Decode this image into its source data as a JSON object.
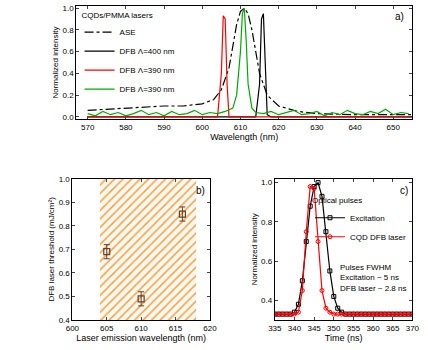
{
  "chart_data": [
    {
      "type": "line",
      "title": "a)",
      "legend_title": "CQDs/PMMA lasers",
      "x_label": "Wavelength (nm)",
      "y_label": "Normalized intensity",
      "xlim": [
        567,
        655
      ],
      "xticks": [
        570,
        580,
        590,
        600,
        610,
        620,
        630,
        640,
        650
      ],
      "ylim": [
        -0.02,
        1.02
      ],
      "yticks": [
        {
          "value": 0.0,
          "label": "0.0"
        },
        0.2,
        0.4,
        0.6,
        0.8,
        {
          "value": 1.0,
          "label": "1.0"
        }
      ],
      "legend": "top left",
      "series": [
        {
          "name": "ASE",
          "color": "#000000",
          "line_style": "dashdot",
          "x": [
            570,
            575,
            580,
            585,
            590,
            595,
            600,
            603,
            605,
            607,
            608,
            609,
            610,
            611,
            612,
            613,
            614,
            615,
            617,
            620,
            625,
            630,
            640,
            650,
            655
          ],
          "values": [
            0.06,
            0.07,
            0.08,
            0.09,
            0.1,
            0.1,
            0.12,
            0.16,
            0.25,
            0.45,
            0.65,
            0.85,
            0.97,
            1.0,
            0.95,
            0.8,
            0.6,
            0.4,
            0.2,
            0.1,
            0.05,
            0.03,
            0.02,
            0.02,
            0.02
          ]
        },
        {
          "name": "DFB Λ=400 nm",
          "color": "#000000",
          "line_style": "solid",
          "x": [
            570,
            614,
            615,
            615.5,
            616,
            616.5,
            617,
            618,
            655
          ],
          "values": [
            0,
            0,
            0.3,
            0.9,
            0.95,
            0.4,
            0.02,
            0,
            0
          ]
        },
        {
          "name": "DFB Λ=390 nm",
          "color": "#ff0000",
          "line_style": "solid",
          "x": [
            570,
            604,
            605,
            605.5,
            606,
            606.5,
            607,
            655
          ],
          "values": [
            0,
            0,
            0.4,
            0.93,
            0.9,
            0.3,
            0,
            0
          ]
        },
        {
          "name": "DFB Λ=390 nm",
          "color": "#00aa00",
          "line_style": "solid",
          "x": [
            570,
            572,
            574,
            576,
            578,
            580,
            582,
            584,
            586,
            588,
            590,
            592,
            594,
            596,
            598,
            600,
            602,
            604,
            606,
            608,
            609,
            610,
            610.5,
            611,
            611.5,
            612,
            613,
            614,
            616,
            618,
            620,
            622,
            624,
            626,
            628,
            630,
            632,
            634,
            636,
            638,
            640,
            642,
            644,
            646,
            648,
            650,
            652,
            654
          ],
          "values": [
            0.03,
            0.01,
            0.05,
            0.02,
            0.04,
            0.01,
            0.03,
            0.06,
            0.02,
            0.04,
            0.01,
            0.05,
            0.02,
            0.03,
            0.06,
            0.02,
            0.04,
            0.03,
            0.05,
            0.08,
            0.2,
            0.6,
            0.95,
            1.0,
            0.7,
            0.3,
            0.08,
            0.04,
            0.03,
            0.05,
            0.02,
            0.04,
            0.06,
            0.02,
            0.03,
            0.05,
            0.01,
            0.04,
            0.02,
            0.06,
            0.03,
            0.02,
            0.05,
            0.03,
            0.07,
            0.02,
            0.04,
            0.03
          ]
        }
      ]
    },
    {
      "type": "scatter",
      "title": "b)",
      "x_label": "Laser emission wavelength (nm)",
      "y_label": "DFB laser threshold (mJ/cm²)",
      "xlim": [
        600,
        620
      ],
      "xticks": [
        600,
        605,
        610,
        615,
        620
      ],
      "ylim": [
        0.4,
        1.0
      ],
      "yticks": [
        0.4,
        0.5,
        0.6,
        0.7,
        0.8,
        0.9,
        {
          "value": 1.0,
          "label": "1.0"
        }
      ],
      "x": [
        605,
        610,
        616
      ],
      "values": [
        0.69,
        0.49,
        0.85
      ],
      "errors": [
        0.03,
        0.03,
        0.03
      ],
      "color": "#6b3e26",
      "marker": "square",
      "shaded_range": [
        604,
        618
      ]
    },
    {
      "type": "line",
      "title": "c)",
      "legend_title": "Optical pulses",
      "annotations": [
        "Pulses FWHM",
        "Excitation ~ 5 ns",
        "DFB laser ~ 2.8 ns"
      ],
      "x_label": "Time (ns)",
      "y_label": "Normalized intensity",
      "xlim": [
        335,
        370
      ],
      "xticks": [
        335,
        340,
        345,
        350,
        355,
        360,
        365,
        370
      ],
      "ylim": [
        0.3,
        1.02
      ],
      "yticks": [
        0.4,
        0.6,
        0.8,
        {
          "value": 1.0,
          "label": "1.0"
        }
      ],
      "legend": "top right",
      "x": [
        335,
        336,
        337,
        338,
        339,
        340,
        341,
        342,
        343,
        344,
        345,
        346,
        347,
        348,
        349,
        350,
        351,
        352,
        353,
        354,
        355,
        356,
        357,
        358,
        359,
        360,
        361,
        362,
        363,
        364,
        365,
        366,
        367,
        368,
        369,
        370
      ],
      "series": [
        {
          "name": "Excitation",
          "color": "#000000",
          "marker": "square",
          "line_style": "solid",
          "values": [
            0.33,
            0.33,
            0.33,
            0.33,
            0.33,
            0.34,
            0.38,
            0.5,
            0.7,
            0.88,
            0.98,
            1.0,
            0.93,
            0.75,
            0.55,
            0.42,
            0.36,
            0.34,
            0.33,
            0.33,
            0.33,
            0.33,
            0.33,
            0.33,
            0.33,
            0.33,
            0.33,
            0.33,
            0.33,
            0.33,
            0.33,
            0.33,
            0.33,
            0.33,
            0.33,
            0.33
          ]
        },
        {
          "name": "CQD DFB laser",
          "color": "#ff0000",
          "marker": "circle",
          "line_style": "solid",
          "values": [
            0.33,
            0.33,
            0.33,
            0.33,
            0.33,
            0.33,
            0.34,
            0.45,
            0.75,
            0.98,
            0.97,
            0.7,
            0.45,
            0.36,
            0.34,
            0.33,
            0.33,
            0.33,
            0.33,
            0.33,
            0.33,
            0.33,
            0.33,
            0.33,
            0.33,
            0.33,
            0.33,
            0.33,
            0.33,
            0.33,
            0.33,
            0.33,
            0.33,
            0.33,
            0.33,
            0.33
          ]
        }
      ]
    }
  ]
}
